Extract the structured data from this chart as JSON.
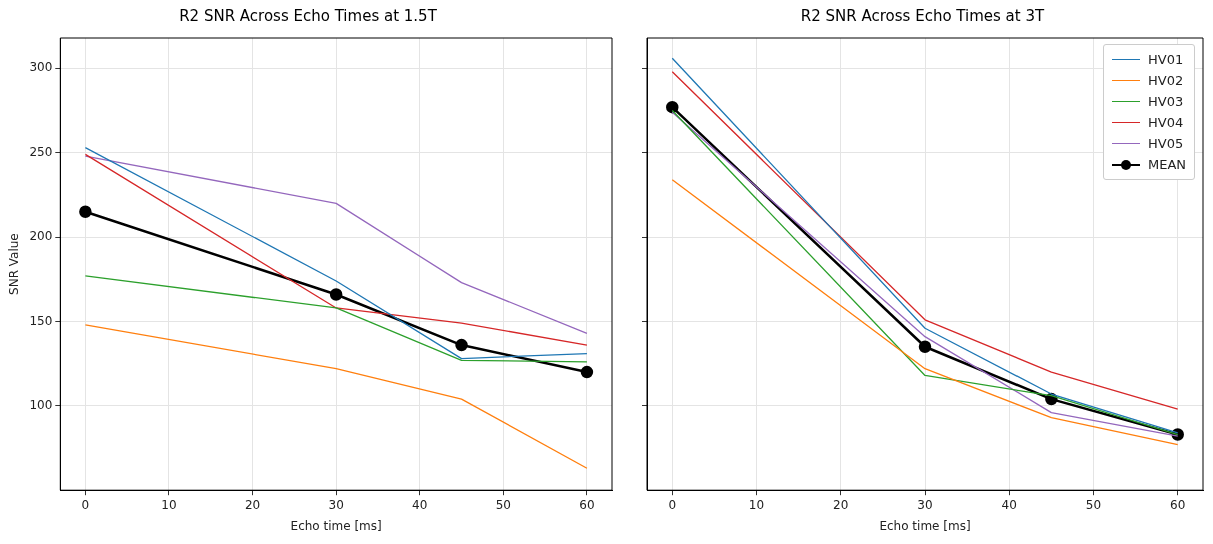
{
  "chart_data": [
    {
      "type": "line",
      "title": "R2 SNR Across Echo Times at 1.5T",
      "xlabel": "Echo time [ms]",
      "ylabel": "SNR Value",
      "x": [
        0,
        30,
        45,
        60
      ],
      "series": [
        {
          "color": "#1f77b4",
          "values": [
            253,
            174,
            128,
            131
          ]
        },
        {
          "color": "#ff7f0e",
          "values": [
            148,
            122,
            104,
            63
          ]
        },
        {
          "color": "#2ca02c",
          "values": [
            177,
            158,
            127,
            126
          ]
        },
        {
          "color": "#d62728",
          "values": [
            249,
            158,
            149,
            136
          ]
        },
        {
          "color": "#9467bd",
          "values": [
            248,
            220,
            173,
            143
          ]
        },
        {
          "color": "#000000",
          "values": [
            215,
            166,
            136,
            120
          ],
          "marker": "circle"
        }
      ],
      "xlim": [
        -3,
        63
      ],
      "xticks": [
        0,
        10,
        20,
        30,
        40,
        50,
        60
      ],
      "ylim": [
        50,
        318
      ],
      "yticks": [
        100,
        150,
        200,
        250,
        300
      ],
      "grid": true,
      "legend": false,
      "marker": "none"
    },
    {
      "type": "line",
      "title": "R2 SNR Across Echo Times at 3T",
      "xlabel": "Echo time [ms]",
      "x": [
        0,
        30,
        45,
        60
      ],
      "series": [
        {
          "name": "HV01",
          "color": "#1f77b4",
          "values": [
            306,
            146,
            107,
            84
          ]
        },
        {
          "name": "HV02",
          "color": "#ff7f0e",
          "values": [
            234,
            122,
            93,
            77
          ]
        },
        {
          "name": "HV03",
          "color": "#2ca02c",
          "values": [
            275,
            118,
            106,
            83
          ]
        },
        {
          "name": "HV04",
          "color": "#d62728",
          "values": [
            298,
            151,
            120,
            98
          ]
        },
        {
          "name": "HV05",
          "color": "#9467bd",
          "values": [
            274,
            141,
            96,
            82
          ]
        },
        {
          "name": "MEAN",
          "color": "#000000",
          "values": [
            277,
            135,
            104,
            83
          ],
          "marker": "circle"
        }
      ],
      "xlim": [
        -3,
        63
      ],
      "xticks": [
        0,
        10,
        20,
        30,
        40,
        50,
        60
      ],
      "ylim": [
        50,
        318
      ],
      "yticks": [
        100,
        150,
        200,
        250,
        300
      ],
      "grid": true,
      "legend": "top right",
      "marker": "none",
      "tick_labels": "x"
    }
  ]
}
